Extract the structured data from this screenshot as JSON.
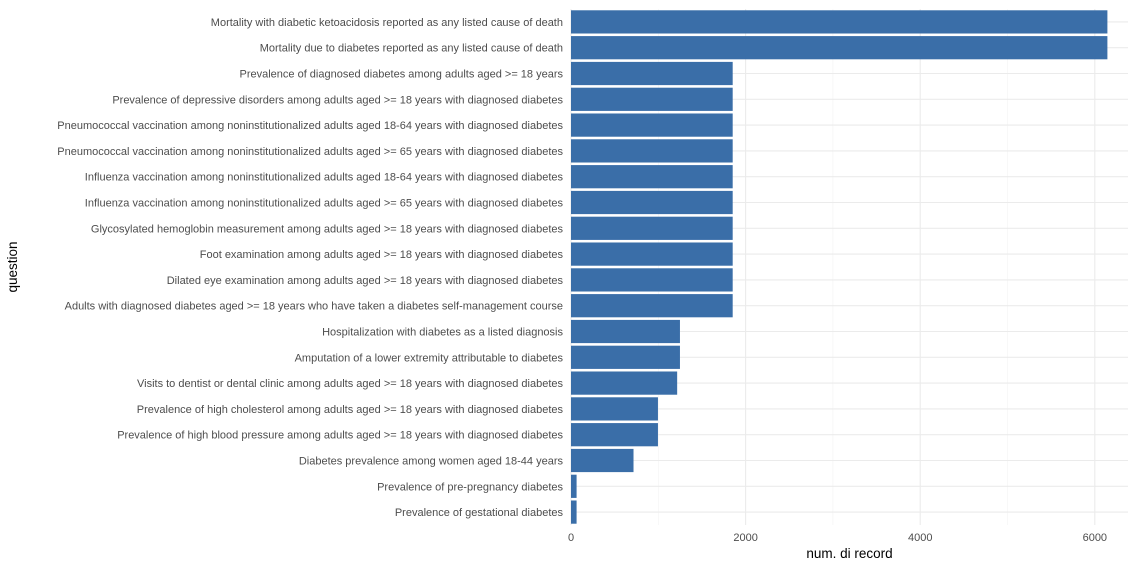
{
  "chart_data": {
    "type": "bar",
    "orientation": "horizontal",
    "categories": [
      "Mortality with diabetic ketoacidosis reported as any listed cause of death",
      "Mortality due to diabetes reported as any listed cause of death",
      "Prevalence of diagnosed diabetes among adults aged >= 18 years",
      "Prevalence of depressive disorders among adults aged >= 18 years with diagnosed diabetes",
      "Pneumococcal vaccination among noninstitutionalized adults aged 18-64 years with diagnosed diabetes",
      "Pneumococcal vaccination among noninstitutionalized adults aged >= 65 years with diagnosed diabetes",
      "Influenza vaccination among noninstitutionalized adults aged 18-64 years with diagnosed diabetes",
      "Influenza vaccination among noninstitutionalized adults aged >= 65 years with diagnosed diabetes",
      "Glycosylated hemoglobin measurement among adults aged >= 18 years with diagnosed diabetes",
      "Foot examination among adults aged >= 18 years with diagnosed diabetes",
      "Dilated eye examination among adults aged >= 18 years with diagnosed diabetes",
      "Adults with diagnosed diabetes aged >= 18 years who have taken a diabetes self-management course",
      "Hospitalization with diabetes as a listed diagnosis",
      "Amputation of a lower extremity attributable to diabetes",
      "Visits to dentist or dental clinic among adults aged >= 18 years with diagnosed diabetes",
      "Prevalence of high cholesterol among adults aged >= 18 years with diagnosed diabetes",
      "Prevalence of high blood pressure among adults aged >= 18 years with diagnosed diabetes",
      "Diabetes prevalence among women aged 18-44 years",
      "Prevalence of pre-pregnancy diabetes",
      "Prevalence of gestational diabetes"
    ],
    "values": [
      6144,
      6144,
      1852,
      1852,
      1852,
      1852,
      1852,
      1852,
      1852,
      1852,
      1852,
      1852,
      1248,
      1248,
      1216,
      996,
      996,
      716,
      64,
      64
    ],
    "xlabel": "num. di record",
    "ylabel": "question",
    "xlim": [
      0,
      6380
    ],
    "xticks": [
      0,
      2000,
      4000,
      6000
    ],
    "xtick_labels": [
      "0",
      "2000",
      "4000",
      "6000"
    ],
    "bar_color": "#3a6ea8",
    "grid": true,
    "legend": "none"
  }
}
